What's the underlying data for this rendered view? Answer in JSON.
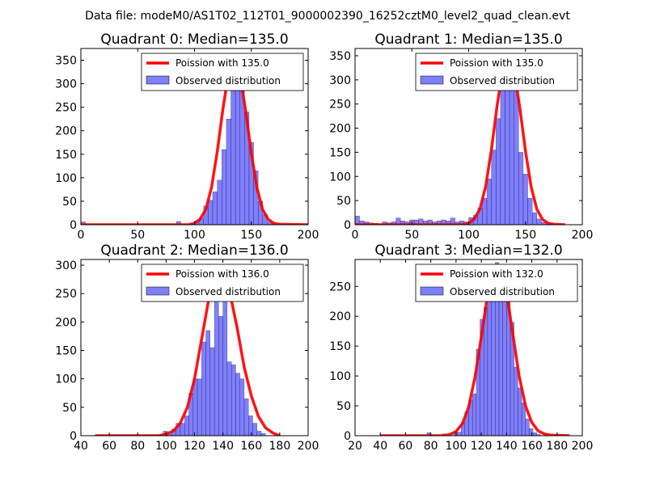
{
  "figure": {
    "suptitle": "Data file: modeM0/AS1T02_112T01_9000002390_16252cztM0_level2_quad_clean.evt"
  },
  "chart_data": [
    {
      "type": "histogram+line",
      "title": "Quadrant 0: Median=135.0",
      "xlim": [
        0,
        200
      ],
      "ylim": [
        0,
        375
      ],
      "xticks": [
        0,
        50,
        100,
        150,
        200
      ],
      "yticks": [
        0,
        50,
        100,
        150,
        200,
        250,
        300,
        350
      ],
      "legend": {
        "position": "top-right",
        "line_label": "Poission with 135.0",
        "bar_label": "Observed distribution"
      },
      "bin_width": 4,
      "bars": [
        {
          "x": 0,
          "v": 6
        },
        {
          "x": 84,
          "v": 7
        },
        {
          "x": 92,
          "v": 2
        },
        {
          "x": 96,
          "v": 4
        },
        {
          "x": 100,
          "v": 8
        },
        {
          "x": 104,
          "v": 14
        },
        {
          "x": 108,
          "v": 40
        },
        {
          "x": 112,
          "v": 52
        },
        {
          "x": 116,
          "v": 70
        },
        {
          "x": 120,
          "v": 95
        },
        {
          "x": 124,
          "v": 160
        },
        {
          "x": 128,
          "v": 225
        },
        {
          "x": 132,
          "v": 285
        },
        {
          "x": 136,
          "v": 345
        },
        {
          "x": 140,
          "v": 310
        },
        {
          "x": 144,
          "v": 240
        },
        {
          "x": 148,
          "v": 175
        },
        {
          "x": 152,
          "v": 115
        },
        {
          "x": 156,
          "v": 50
        },
        {
          "x": 160,
          "v": 22
        },
        {
          "x": 164,
          "v": 6
        },
        {
          "x": 168,
          "v": 2
        }
      ],
      "line": {
        "x": [
          0,
          95,
          100,
          105,
          110,
          115,
          120,
          125,
          130,
          135,
          140,
          145,
          150,
          155,
          160,
          165,
          170,
          175,
          200
        ],
        "y": [
          0,
          0,
          3,
          12,
          33,
          80,
          155,
          246,
          322,
          350,
          318,
          243,
          152,
          78,
          32,
          11,
          3,
          1,
          0
        ]
      }
    },
    {
      "type": "histogram+line",
      "title": "Quadrant 1: Median=135.0",
      "xlim": [
        0,
        200
      ],
      "ylim": [
        0,
        365
      ],
      "xticks": [
        0,
        50,
        100,
        150,
        200
      ],
      "yticks": [
        0,
        50,
        100,
        150,
        200,
        250,
        300,
        350
      ],
      "legend": {
        "position": "top-right",
        "line_label": "Poission with 135.0",
        "bar_label": "Observed distribution"
      },
      "bin_width": 4,
      "bars": [
        {
          "x": 0,
          "v": 18
        },
        {
          "x": 4,
          "v": 8
        },
        {
          "x": 8,
          "v": 6
        },
        {
          "x": 12,
          "v": 4
        },
        {
          "x": 16,
          "v": 3
        },
        {
          "x": 24,
          "v": 6
        },
        {
          "x": 28,
          "v": 4
        },
        {
          "x": 32,
          "v": 6
        },
        {
          "x": 36,
          "v": 14
        },
        {
          "x": 40,
          "v": 8
        },
        {
          "x": 44,
          "v": 6
        },
        {
          "x": 48,
          "v": 10
        },
        {
          "x": 52,
          "v": 10
        },
        {
          "x": 56,
          "v": 12
        },
        {
          "x": 60,
          "v": 8
        },
        {
          "x": 64,
          "v": 10
        },
        {
          "x": 68,
          "v": 6
        },
        {
          "x": 72,
          "v": 8
        },
        {
          "x": 76,
          "v": 10
        },
        {
          "x": 80,
          "v": 8
        },
        {
          "x": 84,
          "v": 14
        },
        {
          "x": 88,
          "v": 6
        },
        {
          "x": 92,
          "v": 8
        },
        {
          "x": 96,
          "v": 6
        },
        {
          "x": 100,
          "v": 15
        },
        {
          "x": 104,
          "v": 20
        },
        {
          "x": 108,
          "v": 35
        },
        {
          "x": 112,
          "v": 55
        },
        {
          "x": 116,
          "v": 95
        },
        {
          "x": 120,
          "v": 155
        },
        {
          "x": 124,
          "v": 220
        },
        {
          "x": 128,
          "v": 285
        },
        {
          "x": 132,
          "v": 345
        },
        {
          "x": 136,
          "v": 310
        },
        {
          "x": 140,
          "v": 330
        },
        {
          "x": 144,
          "v": 150
        },
        {
          "x": 148,
          "v": 105
        },
        {
          "x": 152,
          "v": 55
        },
        {
          "x": 156,
          "v": 25
        },
        {
          "x": 160,
          "v": 12
        },
        {
          "x": 164,
          "v": 5
        },
        {
          "x": 168,
          "v": 2
        }
      ],
      "line": {
        "x": [
          0,
          95,
          100,
          105,
          110,
          115,
          120,
          125,
          130,
          135,
          140,
          145,
          150,
          155,
          160,
          165,
          170,
          175,
          185
        ],
        "y": [
          0,
          0,
          3,
          12,
          33,
          80,
          155,
          246,
          322,
          350,
          318,
          243,
          152,
          78,
          32,
          11,
          3,
          1,
          0
        ]
      }
    },
    {
      "type": "histogram+line",
      "title": "Quadrant 2: Median=136.0",
      "xlim": [
        40,
        200
      ],
      "ylim": [
        0,
        310
      ],
      "xticks": [
        40,
        60,
        80,
        100,
        120,
        140,
        160,
        180,
        200
      ],
      "yticks": [
        0,
        50,
        100,
        150,
        200,
        250,
        300
      ],
      "legend": {
        "position": "top-right",
        "line_label": "Poission with 136.0",
        "bar_label": "Observed distribution"
      },
      "bin_width": 3,
      "bars": [
        {
          "x": 98,
          "v": 8
        },
        {
          "x": 101,
          "v": 3
        },
        {
          "x": 104,
          "v": 12
        },
        {
          "x": 107,
          "v": 22
        },
        {
          "x": 110,
          "v": 22
        },
        {
          "x": 113,
          "v": 35
        },
        {
          "x": 116,
          "v": 75
        },
        {
          "x": 119,
          "v": 100
        },
        {
          "x": 122,
          "v": 100
        },
        {
          "x": 125,
          "v": 165
        },
        {
          "x": 128,
          "v": 185
        },
        {
          "x": 131,
          "v": 155
        },
        {
          "x": 134,
          "v": 285
        },
        {
          "x": 137,
          "v": 210
        },
        {
          "x": 140,
          "v": 275
        },
        {
          "x": 143,
          "v": 130
        },
        {
          "x": 146,
          "v": 125
        },
        {
          "x": 149,
          "v": 110
        },
        {
          "x": 152,
          "v": 100
        },
        {
          "x": 155,
          "v": 65
        },
        {
          "x": 158,
          "v": 35
        },
        {
          "x": 161,
          "v": 22
        },
        {
          "x": 164,
          "v": 8
        },
        {
          "x": 167,
          "v": 4
        }
      ],
      "line": {
        "x": [
          50,
          95,
          100,
          105,
          110,
          115,
          120,
          125,
          130,
          135,
          140,
          145,
          150,
          155,
          160,
          165,
          170,
          175,
          180
        ],
        "y": [
          0,
          0,
          3,
          8,
          22,
          50,
          100,
          170,
          240,
          293,
          295,
          250,
          190,
          120,
          70,
          34,
          14,
          5,
          0
        ]
      }
    },
    {
      "type": "histogram+line",
      "title": "Quadrant 3: Median=132.0",
      "xlim": [
        20,
        200
      ],
      "ylim": [
        0,
        295
      ],
      "xticks": [
        20,
        40,
        60,
        80,
        100,
        120,
        140,
        160,
        180,
        200
      ],
      "yticks": [
        0,
        50,
        100,
        150,
        200,
        250
      ],
      "legend": {
        "position": "top-right",
        "line_label": "Poission with 132.0",
        "bar_label": "Observed distribution"
      },
      "bin_width": 3,
      "bars": [
        {
          "x": 77,
          "v": 5
        },
        {
          "x": 89,
          "v": 3
        },
        {
          "x": 98,
          "v": 6
        },
        {
          "x": 101,
          "v": 6
        },
        {
          "x": 104,
          "v": 22
        },
        {
          "x": 107,
          "v": 40
        },
        {
          "x": 110,
          "v": 60
        },
        {
          "x": 113,
          "v": 70
        },
        {
          "x": 116,
          "v": 145
        },
        {
          "x": 119,
          "v": 195
        },
        {
          "x": 122,
          "v": 215
        },
        {
          "x": 125,
          "v": 225
        },
        {
          "x": 128,
          "v": 255
        },
        {
          "x": 131,
          "v": 290
        },
        {
          "x": 134,
          "v": 245
        },
        {
          "x": 137,
          "v": 275
        },
        {
          "x": 140,
          "v": 235
        },
        {
          "x": 143,
          "v": 190
        },
        {
          "x": 146,
          "v": 115
        },
        {
          "x": 149,
          "v": 80
        },
        {
          "x": 152,
          "v": 55
        },
        {
          "x": 155,
          "v": 28
        },
        {
          "x": 158,
          "v": 12
        },
        {
          "x": 161,
          "v": 5
        },
        {
          "x": 164,
          "v": 2
        }
      ],
      "line": {
        "x": [
          40,
          90,
          95,
          100,
          105,
          110,
          115,
          120,
          125,
          130,
          135,
          140,
          145,
          150,
          155,
          160,
          165,
          170,
          175,
          190
        ],
        "y": [
          0,
          0,
          2,
          7,
          20,
          48,
          98,
          165,
          235,
          280,
          282,
          240,
          170,
          100,
          50,
          22,
          8,
          3,
          1,
          0
        ]
      }
    }
  ]
}
